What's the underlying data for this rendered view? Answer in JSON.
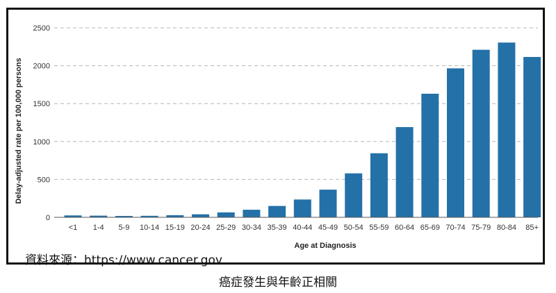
{
  "chart_data": {
    "type": "bar",
    "title": "",
    "xlabel": "Age at Diagnosis",
    "ylabel": "Delay-adjusted rate per 100,000 persons",
    "ylim": [
      0,
      2500
    ],
    "yticks": [
      0,
      500,
      1000,
      1500,
      2000,
      2500
    ],
    "grid": true,
    "categories": [
      "<1",
      "1-4",
      "5-9",
      "10-14",
      "15-19",
      "20-24",
      "25-29",
      "30-34",
      "35-39",
      "40-44",
      "45-49",
      "50-54",
      "55-59",
      "60-64",
      "65-69",
      "70-74",
      "75-79",
      "80-84",
      "85+"
    ],
    "values": [
      25,
      22,
      18,
      20,
      28,
      40,
      65,
      100,
      150,
      235,
      365,
      580,
      845,
      1190,
      1630,
      1965,
      2210,
      2305,
      2115
    ],
    "bar_color": "#2471a8"
  },
  "source_note": "資料來源：https://www.cancer.gov",
  "caption": "癌症發生與年齡正相關"
}
